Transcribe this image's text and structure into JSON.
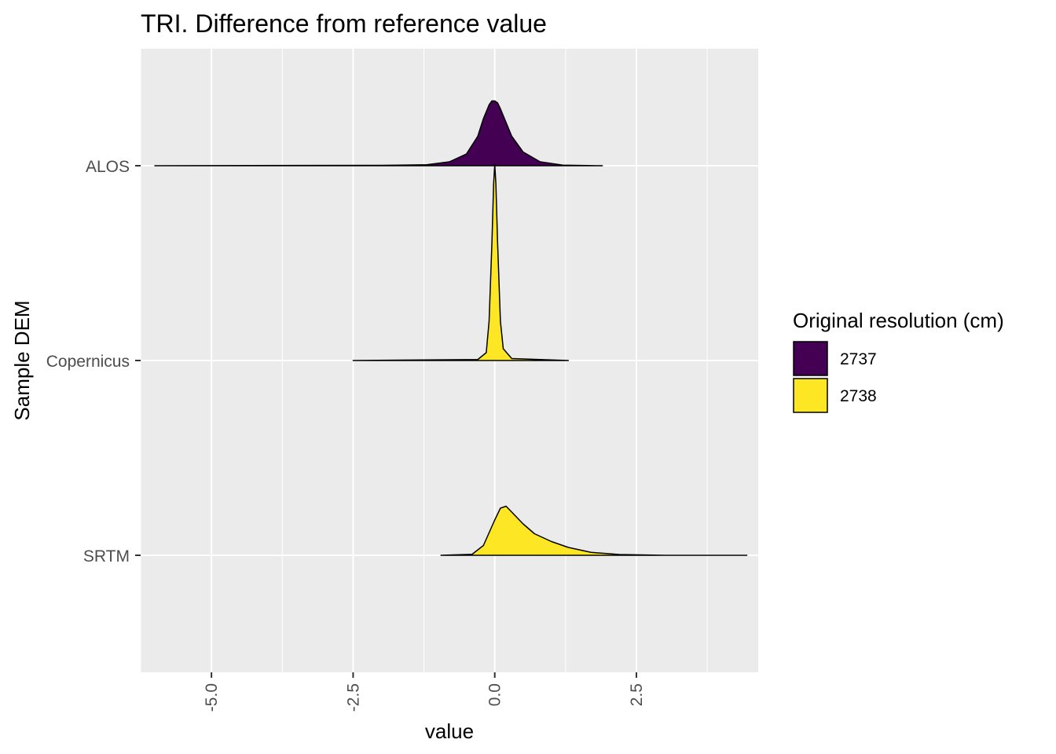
{
  "chart_data": {
    "type": "ridgeline-density",
    "title": "TRI. Difference from reference value",
    "xlabel": "value",
    "ylabel": "Sample DEM",
    "xlim": [
      -6.25,
      4.65
    ],
    "x_ticks": [
      -5.0,
      -2.5,
      0.0,
      2.5
    ],
    "x_tick_labels": [
      "-5.0",
      "-2.5",
      "0.0",
      "2.5"
    ],
    "x_minor_ticks": [
      -6.25,
      -3.75,
      -1.25,
      1.25,
      3.75
    ],
    "categories": [
      "ALOS",
      "Copernicus",
      "SRTM"
    ],
    "legend": {
      "title": "Original resolution (cm)",
      "placement": "right",
      "entries": [
        {
          "label": "2737",
          "color": "#440154"
        },
        {
          "label": "2738",
          "color": "#fde725"
        }
      ]
    },
    "series": [
      {
        "name": "ALOS",
        "fill_group": "2737",
        "range": [
          -6.0,
          1.9
        ],
        "peak_height": 0.33,
        "x": [
          -6.0,
          -2.0,
          -1.2,
          -0.8,
          -0.5,
          -0.3,
          -0.2,
          -0.1,
          -0.05,
          0.0,
          0.05,
          0.1,
          0.2,
          0.3,
          0.5,
          0.8,
          1.2,
          1.9
        ],
        "density": [
          0.0,
          0.002,
          0.005,
          0.02,
          0.06,
          0.15,
          0.24,
          0.31,
          0.33,
          0.33,
          0.32,
          0.29,
          0.22,
          0.15,
          0.07,
          0.02,
          0.003,
          0.0
        ]
      },
      {
        "name": "Copernicus",
        "fill_group": "2738",
        "range": [
          -2.5,
          1.3
        ],
        "peak_height": 1.0,
        "x": [
          -2.5,
          -0.3,
          -0.15,
          -0.1,
          -0.05,
          -0.02,
          0.0,
          0.02,
          0.05,
          0.1,
          0.15,
          0.3,
          1.3
        ],
        "density": [
          0.0,
          0.005,
          0.04,
          0.2,
          0.6,
          0.9,
          1.0,
          0.9,
          0.6,
          0.2,
          0.06,
          0.01,
          0.0
        ],
        "_comment_": null
      },
      {
        "name": "SRTM",
        "fill_group": "2738",
        "range": [
          -0.95,
          4.45
        ],
        "peak_height": 0.25,
        "x": [
          -0.95,
          -0.4,
          -0.2,
          0.0,
          0.1,
          0.2,
          0.3,
          0.5,
          0.7,
          1.0,
          1.3,
          1.7,
          2.2,
          3.0,
          4.45
        ],
        "density": [
          0.0,
          0.005,
          0.05,
          0.18,
          0.24,
          0.25,
          0.22,
          0.16,
          0.11,
          0.07,
          0.04,
          0.015,
          0.004,
          0.0,
          0.0
        ]
      }
    ]
  }
}
